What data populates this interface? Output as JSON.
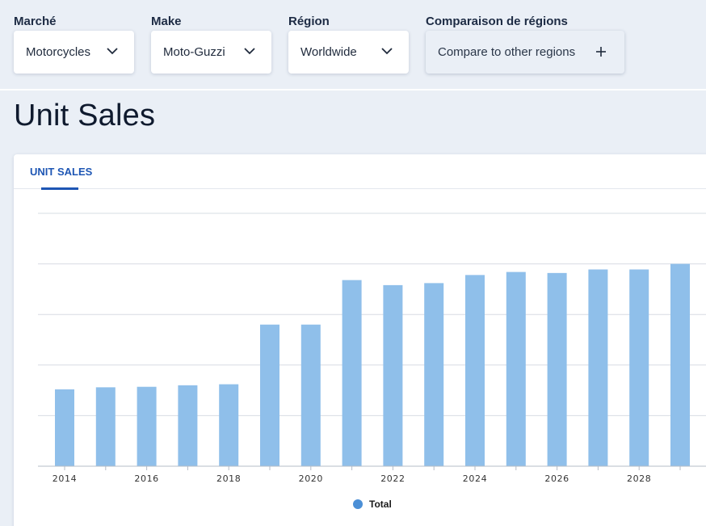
{
  "filters": {
    "market": {
      "label": "Marché",
      "value": "Motorcycles"
    },
    "make": {
      "label": "Make",
      "value": "Moto-Guzzi"
    },
    "region": {
      "label": "Région",
      "value": "Worldwide"
    },
    "compare": {
      "label": "Comparaison de régions",
      "button": "Compare to other regions"
    }
  },
  "page": {
    "title": "Unit Sales"
  },
  "card": {
    "tab": "UNIT SALES"
  },
  "colors": {
    "bar": "#8fbfea",
    "legend": "#4b8fd6",
    "accent": "#1e56b4"
  },
  "chart_data": {
    "type": "bar",
    "title": "",
    "xlabel": "",
    "ylabel": "",
    "categories": [
      "2014",
      "2015",
      "2016",
      "2017",
      "2018",
      "2019",
      "2020",
      "2021",
      "2022",
      "2023",
      "2024",
      "2025",
      "2026",
      "2027",
      "2028",
      "2029"
    ],
    "tick_labels": [
      "2014",
      "2016",
      "2018",
      "2020",
      "2022",
      "2024",
      "2026",
      "2028"
    ],
    "series": [
      {
        "name": "Total",
        "values": [
          1.52,
          1.56,
          1.57,
          1.6,
          1.62,
          2.8,
          2.8,
          3.68,
          3.58,
          3.62,
          3.78,
          3.84,
          3.82,
          3.89,
          3.89,
          4.0
        ]
      }
    ],
    "ylim": [
      0,
      5
    ],
    "grid": true,
    "legend": "bottom-center",
    "y_tick_labels_visible": false
  }
}
